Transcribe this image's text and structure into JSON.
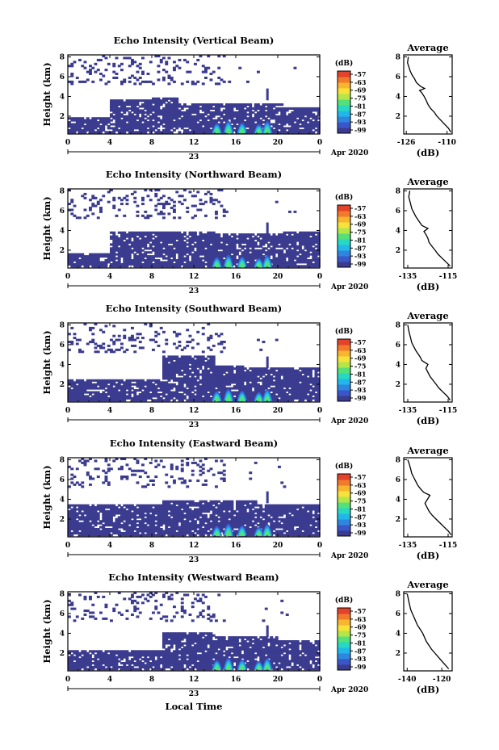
{
  "colors": {
    "scale": [
      "#3b3b8f",
      "#3a56c8",
      "#2f86e0",
      "#22b7ea",
      "#27d8c2",
      "#55e07a",
      "#b5e648",
      "#f5e23a",
      "#f8b52f",
      "#f27a2c",
      "#e2432a"
    ]
  },
  "figure": {
    "xlabel": "Local Time"
  },
  "chart_data": [
    {
      "type": "heatmap",
      "title": "Echo Intensity (Vertical Beam)",
      "ylabel": "Height (km)",
      "yticks": [
        "2",
        "4",
        "6",
        "8"
      ],
      "xticks": [
        "0",
        "4",
        "8",
        "12",
        "16",
        "20",
        "0"
      ],
      "date_label": "23",
      "period_label": "Apr 2020",
      "xlim": [
        0,
        24
      ],
      "ylim": [
        0.2,
        8.2
      ],
      "colorbar": {
        "label": "(dB)",
        "ticks": [
          "-57",
          "-63",
          "-69",
          "-75",
          "-81",
          "-87",
          "-93",
          "-99"
        ]
      },
      "profile": {
        "type": "line",
        "title": "Average",
        "xlabel": "(dB)",
        "xticks": [
          "-126",
          "-110"
        ],
        "xlim": [
          -127,
          -108
        ],
        "yticks": [
          "2",
          "4",
          "6",
          "8"
        ],
        "ylim": [
          0.2,
          8.2
        ],
        "x": [
          -108.5,
          -109.5,
          -111,
          -112.5,
          -114,
          -115,
          -116.5,
          -117.5,
          -118.2,
          -119,
          -120,
          -120.8,
          -118.8,
          -120.3,
          -122,
          -122.8,
          -123.8,
          -124.5,
          -125,
          -125.5,
          -125.2
        ],
        "y": [
          0.4,
          0.8,
          1.2,
          1.6,
          2.0,
          2.4,
          2.8,
          3.2,
          3.6,
          4.0,
          4.4,
          4.6,
          4.8,
          5.0,
          5.4,
          5.8,
          6.2,
          6.6,
          7.0,
          7.4,
          8.0
        ]
      }
    },
    {
      "type": "heatmap",
      "title": "Echo Intensity (Northward Beam)",
      "ylabel": "Height (km)",
      "yticks": [
        "2",
        "4",
        "6",
        "8"
      ],
      "xticks": [
        "0",
        "4",
        "8",
        "12",
        "16",
        "20",
        "0"
      ],
      "date_label": "23",
      "period_label": "Apr 2020",
      "xlim": [
        0,
        24
      ],
      "ylim": [
        0.2,
        8.2
      ],
      "colorbar": {
        "label": "(dB)",
        "ticks": [
          "-57",
          "-63",
          "-69",
          "-75",
          "-81",
          "-87",
          "-93",
          "-99"
        ]
      },
      "profile": {
        "type": "line",
        "title": "Average",
        "xlabel": "(dB)",
        "xticks": [
          "-135",
          "-115"
        ],
        "xlim": [
          -137,
          -113
        ],
        "yticks": [
          "2",
          "4",
          "6",
          "8"
        ],
        "ylim": [
          0.2,
          8.2
        ],
        "x": [
          -114,
          -116,
          -118,
          -120,
          -121.5,
          -123,
          -124.5,
          -125,
          -126,
          -127,
          -125,
          -128,
          -129,
          -130,
          -131,
          -132,
          -133,
          -133.5,
          -134,
          -134.5,
          -134
        ],
        "y": [
          0.4,
          0.8,
          1.2,
          1.6,
          2.0,
          2.4,
          2.8,
          3.2,
          3.6,
          3.9,
          4.2,
          4.5,
          4.8,
          5.1,
          5.4,
          5.8,
          6.2,
          6.6,
          7.0,
          7.4,
          8.0
        ]
      }
    },
    {
      "type": "heatmap",
      "title": "Echo Intensity (Southward Beam)",
      "ylabel": "Height (km)",
      "yticks": [
        "2",
        "4",
        "6",
        "8"
      ],
      "xticks": [
        "0",
        "4",
        "8",
        "12",
        "16",
        "20",
        "0"
      ],
      "date_label": "23",
      "period_label": "Apr 2020",
      "xlim": [
        0,
        24
      ],
      "ylim": [
        0.2,
        8.2
      ],
      "colorbar": {
        "label": "(dB)",
        "ticks": [
          "-57",
          "-63",
          "-69",
          "-75",
          "-81",
          "-87",
          "-93",
          "-99"
        ]
      },
      "profile": {
        "type": "line",
        "title": "Average",
        "xlabel": "(dB)",
        "xticks": [
          "-135",
          "-115"
        ],
        "xlim": [
          -137,
          -113
        ],
        "yticks": [
          "2",
          "4",
          "6",
          "8"
        ],
        "ylim": [
          0.2,
          8.2
        ],
        "x": [
          -114,
          -115.5,
          -117.5,
          -119.5,
          -121,
          -122.5,
          -124,
          -125,
          -126,
          -125,
          -128,
          -129,
          -130,
          -131,
          -132,
          -133,
          -133.5,
          -134,
          -134.5,
          -135
        ],
        "y": [
          0.4,
          0.8,
          1.2,
          1.6,
          2.0,
          2.4,
          2.8,
          3.2,
          3.6,
          4.0,
          4.4,
          4.8,
          5.1,
          5.4,
          5.8,
          6.2,
          6.6,
          7.0,
          7.4,
          8.0
        ]
      }
    },
    {
      "type": "heatmap",
      "title": "Echo Intensity (Eastward Beam)",
      "ylabel": "Height (km)",
      "yticks": [
        "2",
        "4",
        "6",
        "8"
      ],
      "xticks": [
        "0",
        "4",
        "8",
        "12",
        "16",
        "20",
        "0"
      ],
      "date_label": "23",
      "period_label": "Apr 2020",
      "xlim": [
        0,
        24
      ],
      "ylim": [
        0.2,
        8.2
      ],
      "colorbar": {
        "label": "(dB)",
        "ticks": [
          "-57",
          "-63",
          "-69",
          "-75",
          "-81",
          "-87",
          "-93",
          "-99"
        ]
      },
      "profile": {
        "type": "line",
        "title": "Average",
        "xlabel": "(dB)",
        "xticks": [
          "-135",
          "-115"
        ],
        "xlim": [
          -137,
          -113
        ],
        "yticks": [
          "2",
          "4",
          "6",
          "8"
        ],
        "ylim": [
          0.2,
          8.2
        ],
        "x": [
          -113.5,
          -115,
          -117,
          -119,
          -121,
          -123,
          -124.5,
          -125.5,
          -126.5,
          -124,
          -127,
          -128.5,
          -130,
          -131,
          -132,
          -133,
          -133.5,
          -134,
          -134.5,
          -135
        ],
        "y": [
          0.4,
          0.8,
          1.2,
          1.6,
          2.0,
          2.4,
          2.8,
          3.2,
          3.6,
          4.4,
          4.7,
          5.0,
          5.4,
          5.8,
          6.2,
          6.6,
          7.0,
          7.4,
          7.7,
          8.0
        ]
      }
    },
    {
      "type": "heatmap",
      "title": "Echo Intensity (Westward Beam)",
      "ylabel": "Height (km)",
      "yticks": [
        "2",
        "4",
        "6",
        "8"
      ],
      "xticks": [
        "0",
        "4",
        "8",
        "12",
        "16",
        "20",
        "0"
      ],
      "date_label": "23",
      "period_label": "Apr 2020",
      "xlim": [
        0,
        24
      ],
      "ylim": [
        0.2,
        8.2
      ],
      "colorbar": {
        "label": "(dB)",
        "ticks": [
          "-57",
          "-63",
          "-69",
          "-75",
          "-81",
          "-87",
          "-93",
          "-99"
        ]
      },
      "profile": {
        "type": "line",
        "title": "Average",
        "xlabel": "(dB)",
        "xticks": [
          "-140",
          "-120"
        ],
        "xlim": [
          -142,
          -114
        ],
        "yticks": [
          "2",
          "4",
          "6",
          "8"
        ],
        "ylim": [
          0.2,
          8.2
        ],
        "x": [
          -116,
          -118,
          -120,
          -122,
          -124,
          -126,
          -127.5,
          -129,
          -130,
          -131,
          -132.5,
          -134,
          -135,
          -136,
          -137,
          -138,
          -138.5,
          -139,
          -139.5,
          -140
        ],
        "y": [
          0.4,
          0.8,
          1.2,
          1.6,
          2.0,
          2.4,
          2.8,
          3.2,
          3.6,
          4.0,
          4.4,
          4.8,
          5.2,
          5.6,
          6.0,
          6.4,
          6.8,
          7.2,
          7.6,
          8.0
        ]
      }
    }
  ]
}
